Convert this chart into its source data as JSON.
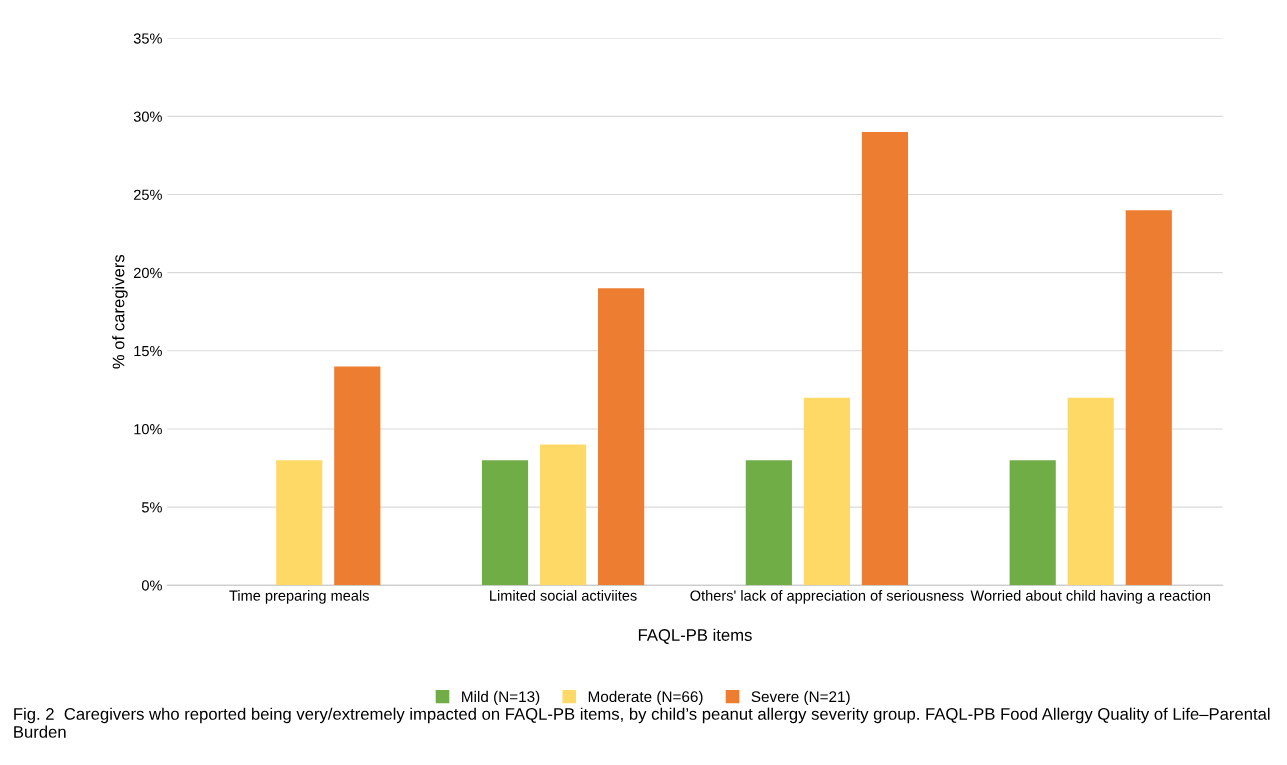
{
  "chart_data": {
    "type": "bar",
    "xlabel": "FAQL-PB items",
    "ylabel": "% of caregivers",
    "categories": [
      "Time preparing meals",
      "Limited social activiites",
      "Others' lack of appreciation of seriousness",
      "Worried about child having a reaction"
    ],
    "series": [
      {
        "name": "Mild (N=13)",
        "color": "#70ad47",
        "values": [
          0,
          8,
          8,
          8
        ]
      },
      {
        "name": "Moderate (N=66)",
        "color": "#ffd966",
        "values": [
          8,
          9,
          12,
          12
        ]
      },
      {
        "name": "Severe (N=21)",
        "color": "#ed7d31",
        "values": [
          14,
          19,
          29,
          24
        ]
      }
    ],
    "ylim": [
      0,
      35
    ],
    "yticks": [
      {
        "value": 0,
        "label": "0%"
      },
      {
        "value": 5,
        "label": "5%"
      },
      {
        "value": 10,
        "label": "10%"
      },
      {
        "value": 15,
        "label": "15%"
      },
      {
        "value": 20,
        "label": "20%"
      },
      {
        "value": 25,
        "label": "25%"
      },
      {
        "value": 30,
        "label": "30%"
      },
      {
        "value": 35,
        "label": "35%"
      }
    ],
    "grid": "y",
    "legend": "bottom",
    "annotations": [
      "Fig. 2  Caregivers who reported being very/extremely impacted on FAQL-PB items, by child’s peanut allergy severity group. FAQL-PB Food Allergy Quality of Life–Parental Burden"
    ]
  }
}
